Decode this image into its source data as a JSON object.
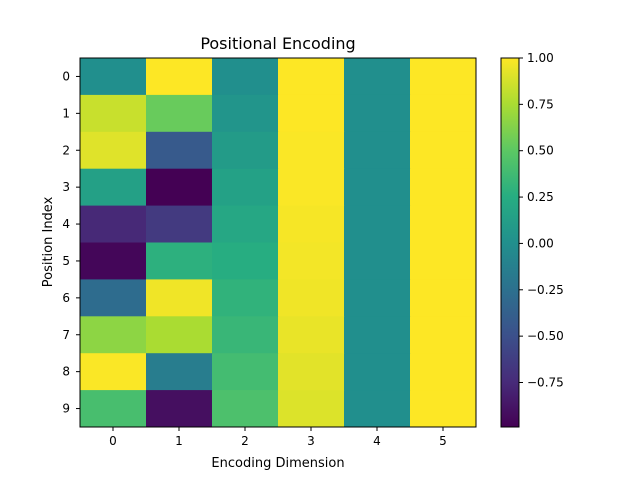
{
  "chart_data": {
    "type": "heatmap",
    "title": "Positional Encoding",
    "xlabel": "Encoding Dimension",
    "ylabel": "Position Index",
    "x_ticks": [
      "0",
      "1",
      "2",
      "3",
      "4",
      "5"
    ],
    "y_ticks": [
      "0",
      "1",
      "2",
      "3",
      "4",
      "5",
      "6",
      "7",
      "8",
      "9"
    ],
    "colormap": "viridis",
    "vmin": -0.99,
    "vmax": 1.0,
    "colorbar_ticks": [
      {
        "value": 1.0,
        "label": "1.00"
      },
      {
        "value": 0.75,
        "label": "0.75"
      },
      {
        "value": 0.5,
        "label": "0.50"
      },
      {
        "value": 0.25,
        "label": "0.25"
      },
      {
        "value": 0.0,
        "label": "0.00"
      },
      {
        "value": -0.25,
        "label": "−0.25"
      },
      {
        "value": -0.5,
        "label": "−0.50"
      },
      {
        "value": -0.75,
        "label": "−0.75"
      }
    ],
    "values": [
      [
        0.0,
        1.0,
        0.0,
        1.0,
        0.0,
        1.0
      ],
      [
        0.84,
        0.54,
        0.05,
        1.0,
        0.0,
        1.0
      ],
      [
        0.91,
        -0.42,
        0.1,
        0.99,
        0.0,
        1.0
      ],
      [
        0.14,
        -0.99,
        0.15,
        0.99,
        0.0,
        1.0
      ],
      [
        -0.76,
        -0.65,
        0.2,
        0.98,
        0.0,
        1.0
      ],
      [
        -0.96,
        0.28,
        0.25,
        0.97,
        0.0,
        1.0
      ],
      [
        -0.28,
        0.96,
        0.3,
        0.96,
        0.0,
        1.0
      ],
      [
        0.66,
        0.75,
        0.34,
        0.94,
        0.0,
        1.0
      ],
      [
        0.99,
        -0.15,
        0.39,
        0.92,
        0.0,
        1.0
      ],
      [
        0.41,
        -0.91,
        0.43,
        0.9,
        0.0,
        1.0
      ]
    ]
  }
}
